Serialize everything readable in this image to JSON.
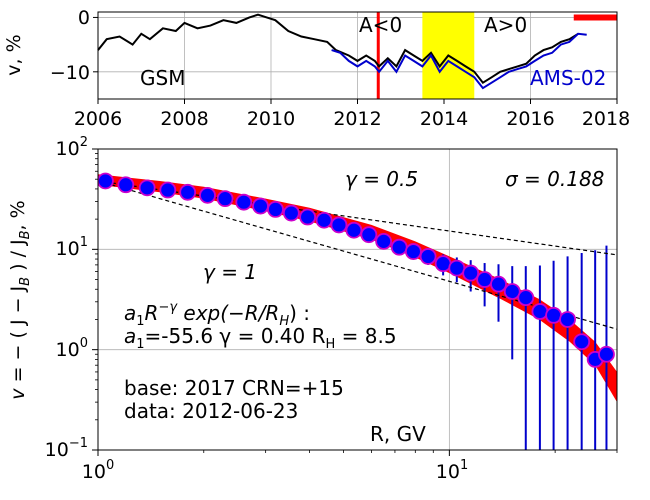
{
  "chart_data": [
    {
      "type": "line",
      "x_scale": "linear",
      "ylabel": "v, %",
      "xlim": [
        2006,
        2018
      ],
      "ylim": [
        -15,
        1
      ],
      "x_ticks": [
        2006,
        2008,
        2010,
        2012,
        2014,
        2016,
        2018
      ],
      "x_tick_labels": [
        "2006",
        "2008",
        "2010",
        "2012",
        "2014",
        "2016",
        "2018"
      ],
      "y_ticks": [
        -10,
        0
      ],
      "y_tick_labels": [
        "−10",
        "0"
      ],
      "grid": true,
      "series": [
        {
          "name": "GSM",
          "color": "#000000",
          "x": [
            2006.0,
            2006.2,
            2006.5,
            2006.8,
            2007.0,
            2007.2,
            2007.5,
            2007.8,
            2008.0,
            2008.3,
            2008.6,
            2008.9,
            2009.2,
            2009.5,
            2009.7,
            2009.9,
            2010.1,
            2010.4,
            2010.7,
            2011.0,
            2011.3,
            2011.5,
            2011.8,
            2012.0,
            2012.2,
            2012.4,
            2012.5,
            2012.7,
            2012.9,
            2013.1,
            2013.3,
            2013.5,
            2013.7,
            2013.9,
            2014.1,
            2014.3,
            2014.5,
            2014.7,
            2014.9,
            2015.1,
            2015.3,
            2015.5,
            2015.7,
            2015.9,
            2016.1,
            2016.3,
            2016.5,
            2016.7,
            2016.9,
            2017.1
          ],
          "y": [
            -6,
            -4,
            -3.5,
            -5,
            -3,
            -4,
            -2,
            -2.5,
            -1,
            -2,
            -1.5,
            -0.5,
            -1,
            0,
            0.5,
            0,
            -0.5,
            -2.5,
            -3.5,
            -4,
            -4.5,
            -6,
            -7,
            -8,
            -7,
            -8,
            -9,
            -7.5,
            -9,
            -6,
            -7,
            -8,
            -6.5,
            -9,
            -7,
            -8,
            -9,
            -10,
            -12,
            -11,
            -10,
            -9.5,
            -9,
            -8.5,
            -7,
            -6,
            -5.5,
            -4.5,
            -4,
            -3
          ]
        },
        {
          "name": "AMS-02",
          "color": "#0000cc",
          "x": [
            2011.4,
            2011.6,
            2011.8,
            2012.0,
            2012.2,
            2012.4,
            2012.5,
            2012.7,
            2012.9,
            2013.1,
            2013.3,
            2013.5,
            2013.7,
            2013.9,
            2014.1,
            2014.3,
            2014.5,
            2014.7,
            2014.9,
            2015.1,
            2015.3,
            2015.5,
            2015.7,
            2015.9,
            2016.1,
            2016.3,
            2016.5,
            2016.7,
            2016.9,
            2017.1,
            2017.3
          ],
          "y": [
            -6,
            -6.5,
            -8,
            -9,
            -8,
            -9,
            -10,
            -8,
            -10,
            -7,
            -8,
            -9,
            -7,
            -10,
            -8,
            -9,
            -10,
            -11,
            -13,
            -12,
            -11,
            -10,
            -9.5,
            -9,
            -8,
            -7,
            -6.5,
            -5,
            -4.5,
            -3,
            -3.2
          ]
        }
      ],
      "annotations": [
        {
          "text": "GSM",
          "x": 2007.3,
          "y": -11
        },
        {
          "text": "A<0",
          "x": 2012.0,
          "y": -1.5
        },
        {
          "text": "A>0",
          "x": 2014.9,
          "y": -1.5
        },
        {
          "text": "AMS-02",
          "x": 2016.0,
          "y": -11
        }
      ],
      "vline": {
        "x": 2012.48,
        "color": "#ff0000"
      },
      "shaded_span": {
        "x0": 2013.5,
        "x1": 2014.7,
        "color": "#ffff00"
      },
      "marker_bar": {
        "x0": 2017.0,
        "x1": 2018.0,
        "y": 0,
        "color": "#ff0000"
      }
    },
    {
      "type": "scatter",
      "x_scale": "log",
      "y_scale": "log",
      "xlabel": "R, GV",
      "ylabel": "v = − ( J − J_B ) / J_B , %",
      "xlim": [
        1,
        30
      ],
      "ylim": [
        0.1,
        100
      ],
      "x_ticks": [
        1,
        10
      ],
      "y_ticks": [
        0.1,
        1,
        10,
        100
      ],
      "grid": true,
      "points": {
        "color": "#0000ff",
        "edge_color": "#cc00cc",
        "x": [
          1.05,
          1.2,
          1.38,
          1.58,
          1.8,
          2.05,
          2.3,
          2.6,
          2.9,
          3.2,
          3.55,
          3.95,
          4.4,
          4.85,
          5.35,
          5.9,
          6.5,
          7.2,
          7.9,
          8.7,
          9.6,
          10.5,
          11.5,
          12.6,
          13.8,
          15.1,
          16.5,
          18.1,
          19.8,
          21.7,
          23.8,
          26.0,
          28.0
        ],
        "y": [
          48,
          44,
          41,
          39,
          37,
          34.5,
          32,
          29.5,
          27,
          25,
          23,
          21,
          19.5,
          17.5,
          15.5,
          14,
          12,
          10.5,
          9.5,
          8.5,
          7.2,
          6.5,
          5.8,
          5,
          4.5,
          3.8,
          3.3,
          2.4,
          2.2,
          2.0,
          1.2,
          0.8,
          0.9
        ],
        "err": [
          0.5,
          0.5,
          0.5,
          0.5,
          0.6,
          0.6,
          0.6,
          0.6,
          0.7,
          0.7,
          0.8,
          0.8,
          0.9,
          1.0,
          1.0,
          1.1,
          1.2,
          1.3,
          1.4,
          1.5,
          1.7,
          1.8,
          2.0,
          2.3,
          2.6,
          3.0,
          3.5,
          4.5,
          5.5,
          6.5,
          8,
          9,
          10
        ]
      },
      "fit_band": {
        "color": "#ff0000",
        "x": [
          1.0,
          1.5,
          2.0,
          3.0,
          4.0,
          6.0,
          8.0,
          10.0,
          14.0,
          18.0,
          22.0,
          26.0,
          30.0
        ],
        "y_upper": [
          56,
          48,
          42,
          32,
          26,
          17.5,
          12,
          8.5,
          5,
          3.2,
          2,
          1.2,
          0.6
        ],
        "y_lower": [
          44,
          37,
          32,
          24,
          19,
          12.5,
          8.3,
          5.8,
          3.2,
          2.0,
          1.2,
          0.7,
          0.3
        ]
      },
      "reference_lines": [
        {
          "name": "γ = 0.5",
          "x": [
            1.0,
            30.0
          ],
          "y": [
            48,
            8.8
          ],
          "style": "dashed"
        },
        {
          "name": "γ = 1",
          "x": [
            1.0,
            30.0
          ],
          "y": [
            48,
            1.6
          ],
          "style": "dashed"
        }
      ],
      "annotations": [
        {
          "text": "γ = 0.5",
          "x": 5.5,
          "y": 45
        },
        {
          "text": "σ = 0.188",
          "x": 16,
          "y": 45
        },
        {
          "text": "γ = 1",
          "x": 2.0,
          "y": 5
        },
        {
          "text": "a₁R^−γ exp(−R/R_H) :",
          "x": 1.25,
          "y": 2.0
        },
        {
          "text": "a₁=-55.6  γ = 0.40  R_H =  8.5",
          "x": 1.25,
          "y": 1.2
        },
        {
          "text": "base: 2017   CRN=+15",
          "x": 1.25,
          "y": 0.33
        },
        {
          "text": "data: 2012-06-23",
          "x": 1.25,
          "y": 0.2
        }
      ]
    }
  ],
  "labels": {
    "top_ylabel": "v, %",
    "top_xticks": [
      "2006",
      "2008",
      "2010",
      "2012",
      "2014",
      "2016",
      "2018"
    ],
    "top_yticks": [
      "0",
      "−10"
    ],
    "gsm": "GSM",
    "a_neg": "A<0",
    "a_pos": "A>0",
    "ams": "AMS-02",
    "bottom_ylabel_v": "v",
    "bottom_ylabel_rest": " = − ( J − J",
    "bottom_ylabel_b1": "B",
    "bottom_ylabel_mid": " ) / J",
    "bottom_ylabel_b2": "B",
    "bottom_ylabel_end": ", %",
    "gamma_05": "γ = 0.5",
    "sigma": "σ = 0.188",
    "gamma_1": "γ = 1",
    "formula_a1": "a",
    "formula_sub1": "1",
    "formula_r": "R",
    "formula_sup": "−γ",
    "formula_exp": " exp(−R/R",
    "formula_h": "H",
    "formula_close": ") :",
    "params_a": "a",
    "params_sub1": "1",
    "params_val": "=-55.6  γ = 0.40  R",
    "params_h": "H",
    "params_rh": " =  8.5",
    "base": "base: 2017   CRN=+15",
    "data_date": "data: 2012-06-23",
    "xlabel": "R, GV",
    "bottom_xtick_1": "10",
    "bottom_xtick_1_exp": "0",
    "bottom_xtick_10": "10",
    "bottom_xtick_10_exp": "1",
    "bottom_ytick_01": "10",
    "bottom_ytick_01_exp": "−1",
    "bottom_ytick_1": "10",
    "bottom_ytick_1_exp": "0",
    "bottom_ytick_10": "10",
    "bottom_ytick_10_exp": "1",
    "bottom_ytick_100": "10",
    "bottom_ytick_100_exp": "2"
  }
}
